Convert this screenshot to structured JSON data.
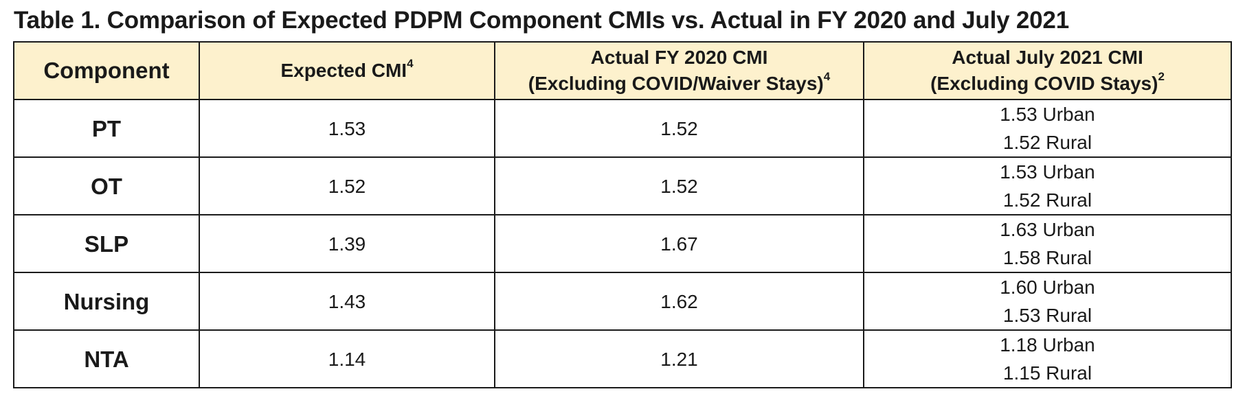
{
  "title": "Table 1. Comparison of Expected PDPM Component CMIs vs. Actual in FY 2020 and July 2021",
  "headers": {
    "component": "Component",
    "expected": {
      "text": "Expected CMI",
      "sup": "4"
    },
    "fy2020": {
      "line1": "Actual FY 2020 CMI",
      "line2": "(Excluding COVID/Waiver Stays)",
      "sup": "4"
    },
    "july2021": {
      "line1": "Actual July 2021 CMI",
      "line2": "(Excluding COVID Stays)",
      "sup": "2"
    }
  },
  "rows": [
    {
      "component": "PT",
      "expected": "1.53",
      "fy2020": "1.52",
      "july_urban": "1.53 Urban",
      "july_rural": "1.52 Rural"
    },
    {
      "component": "OT",
      "expected": "1.52",
      "fy2020": "1.52",
      "july_urban": "1.53 Urban",
      "july_rural": "1.52 Rural"
    },
    {
      "component": "SLP",
      "expected": "1.39",
      "fy2020": "1.67",
      "july_urban": "1.63 Urban",
      "july_rural": "1.58 Rural"
    },
    {
      "component": "Nursing",
      "expected": "1.43",
      "fy2020": "1.62",
      "july_urban": "1.60 Urban",
      "july_rural": "1.53 Rural"
    },
    {
      "component": "NTA",
      "expected": "1.14",
      "fy2020": "1.21",
      "july_urban": "1.18 Urban",
      "july_rural": "1.15 Rural"
    }
  ]
}
